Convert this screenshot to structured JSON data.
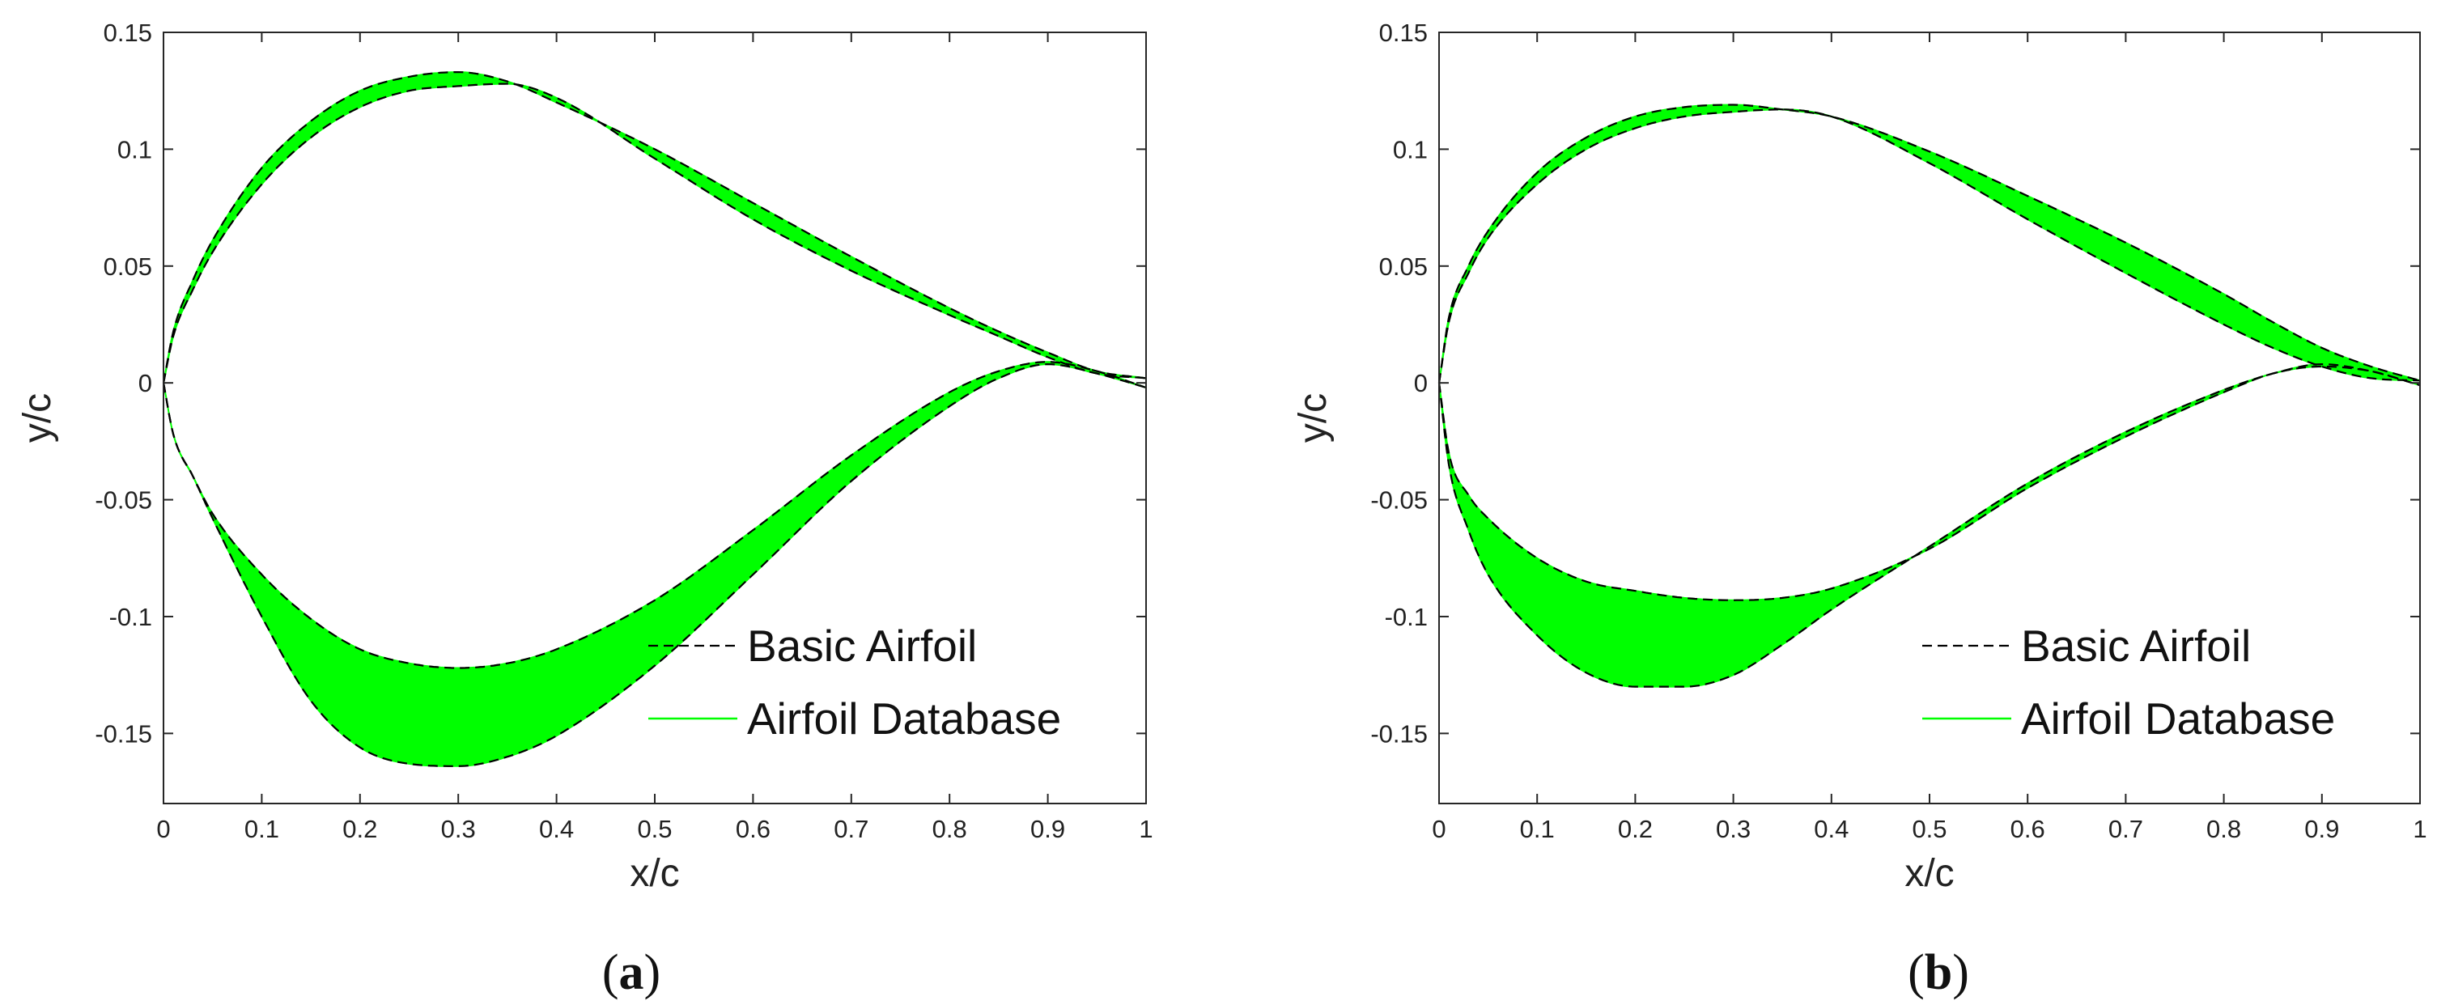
{
  "chart_data": [
    {
      "type": "line",
      "panel_label": "a",
      "xlabel": "x/c",
      "ylabel": "y/c",
      "xlim": [
        0,
        1
      ],
      "ylim": [
        -0.18,
        0.15
      ],
      "xticks": [
        0,
        0.1,
        0.2,
        0.3,
        0.4,
        0.5,
        0.6,
        0.7,
        0.8,
        0.9,
        1
      ],
      "xtick_labels": [
        "0",
        "0.1",
        "0.2",
        "0.3",
        "0.4",
        "0.5",
        "0.6",
        "0.7",
        "0.8",
        "0.9",
        "1"
      ],
      "yticks": [
        -0.15,
        -0.1,
        -0.05,
        0,
        0.05,
        0.1,
        0.15
      ],
      "ytick_labels": [
        "-0.15",
        "-0.1",
        "-0.05",
        "0",
        "0.05",
        "0.1",
        "0.15"
      ],
      "grid": false,
      "legend_position": "bottom-right",
      "legend": [
        "Basic Airfoil",
        "Airfoil Database"
      ],
      "colors": {
        "basic": "#000000",
        "database": "#00ff00"
      },
      "envelope": {
        "x": [
          0,
          0.01,
          0.03,
          0.05,
          0.1,
          0.15,
          0.2,
          0.25,
          0.3,
          0.35,
          0.4,
          0.5,
          0.6,
          0.7,
          0.8,
          0.85,
          0.9,
          0.95,
          1
        ],
        "upper_outer": [
          0,
          0.022,
          0.044,
          0.061,
          0.092,
          0.112,
          0.125,
          0.131,
          0.133,
          0.129,
          0.12,
          0.1,
          0.077,
          0.054,
          0.032,
          0.022,
          0.013,
          0.005,
          0.002
        ],
        "upper_inner": [
          0,
          0.02,
          0.04,
          0.056,
          0.085,
          0.105,
          0.118,
          0.125,
          0.127,
          0.128,
          0.122,
          0.096,
          0.07,
          0.048,
          0.029,
          0.02,
          0.011,
          0.004,
          0.002
        ],
        "lower_inner": [
          0,
          -0.022,
          -0.04,
          -0.056,
          -0.082,
          -0.101,
          -0.114,
          -0.12,
          -0.122,
          -0.12,
          -0.114,
          -0.093,
          -0.063,
          -0.031,
          -0.004,
          0.005,
          0.009,
          0.005,
          -0.002
        ],
        "lower_outer": [
          0,
          -0.022,
          -0.04,
          -0.058,
          -0.1,
          -0.136,
          -0.156,
          -0.163,
          -0.164,
          -0.16,
          -0.151,
          -0.121,
          -0.082,
          -0.042,
          -0.01,
          0.002,
          0.008,
          0.004,
          -0.002
        ]
      }
    },
    {
      "type": "line",
      "panel_label": "b",
      "xlabel": "x/c",
      "ylabel": "y/c",
      "xlim": [
        0,
        1
      ],
      "ylim": [
        -0.18,
        0.15
      ],
      "xticks": [
        0,
        0.1,
        0.2,
        0.3,
        0.4,
        0.5,
        0.6,
        0.7,
        0.8,
        0.9,
        1
      ],
      "xtick_labels": [
        "0",
        "0.1",
        "0.2",
        "0.3",
        "0.4",
        "0.5",
        "0.6",
        "0.7",
        "0.8",
        "0.9",
        "1"
      ],
      "yticks": [
        -0.15,
        -0.1,
        -0.05,
        0,
        0.05,
        0.1,
        0.15
      ],
      "ytick_labels": [
        "-0.15",
        "-0.1",
        "-0.05",
        "0",
        "0.05",
        "0.1",
        "0.15"
      ],
      "grid": false,
      "legend_position": "bottom-right",
      "legend": [
        "Basic Airfoil",
        "Airfoil Database"
      ],
      "colors": {
        "basic": "#000000",
        "database": "#00ff00"
      },
      "envelope": {
        "x": [
          0,
          0.01,
          0.03,
          0.05,
          0.1,
          0.15,
          0.2,
          0.25,
          0.3,
          0.35,
          0.4,
          0.5,
          0.6,
          0.7,
          0.8,
          0.85,
          0.9,
          0.95,
          1
        ],
        "upper_outer": [
          0,
          0.028,
          0.05,
          0.065,
          0.09,
          0.105,
          0.114,
          0.118,
          0.119,
          0.117,
          0.114,
          0.099,
          0.08,
          0.06,
          0.038,
          0.026,
          0.015,
          0.007,
          0.001
        ],
        "upper_inner": [
          0,
          0.026,
          0.047,
          0.062,
          0.085,
          0.1,
          0.109,
          0.114,
          0.116,
          0.117,
          0.114,
          0.094,
          0.07,
          0.047,
          0.025,
          0.015,
          0.007,
          0.002,
          0.001
        ],
        "lower_inner": [
          0,
          -0.03,
          -0.048,
          -0.058,
          -0.075,
          -0.085,
          -0.089,
          -0.092,
          -0.093,
          -0.092,
          -0.088,
          -0.071,
          -0.045,
          -0.023,
          -0.004,
          0.004,
          0.007,
          0.005,
          -0.001
        ],
        "lower_outer": [
          0,
          -0.035,
          -0.063,
          -0.082,
          -0.108,
          -0.124,
          -0.13,
          -0.13,
          -0.125,
          -0.112,
          -0.097,
          -0.07,
          -0.043,
          -0.021,
          -0.003,
          0.004,
          0.008,
          0.005,
          -0.001
        ]
      }
    }
  ]
}
